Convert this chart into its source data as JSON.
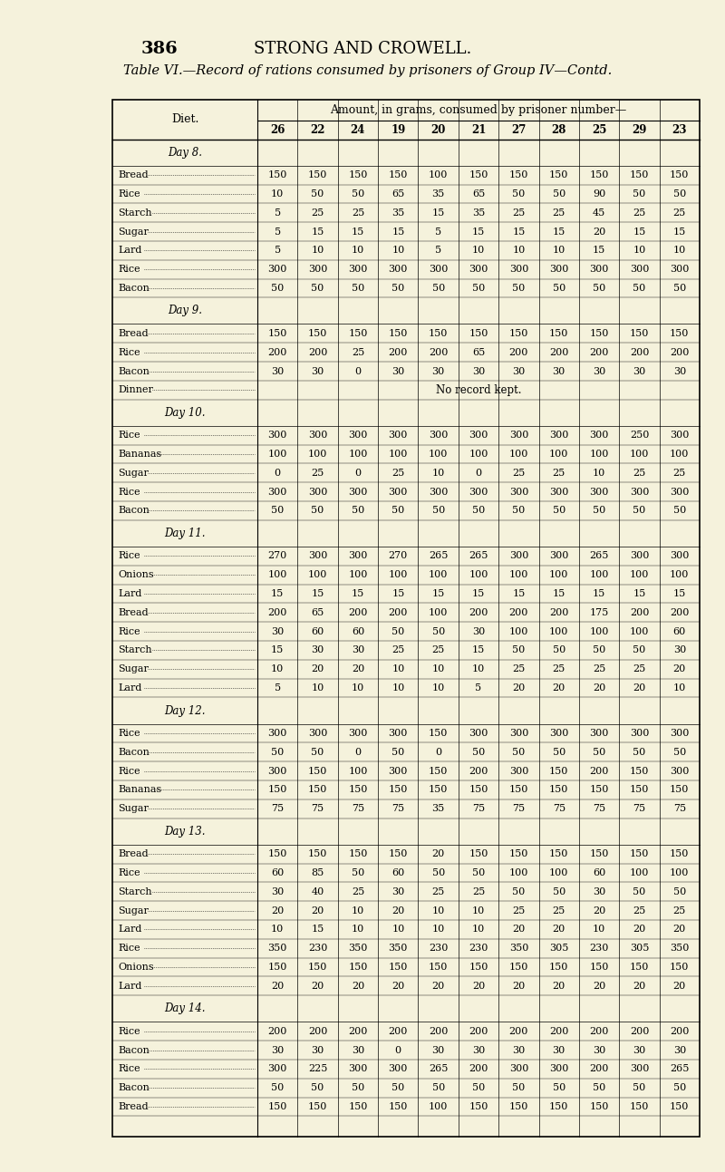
{
  "page_num": "386",
  "header": "STRONG AND CROWELL.",
  "title": "Table VI.—Record of rations consumed by prisoners of Group IV—Contd.",
  "col_header_top": "Amount, in grams, consumed by prisoner number—",
  "col_header_diet": "Diet.",
  "col_headers": [
    "26",
    "22",
    "24",
    "19",
    "20",
    "21",
    "27",
    "28",
    "25",
    "29",
    "23"
  ],
  "bg_color": "#f5f2dc",
  "rows": [
    {
      "label": "Day 8.",
      "type": "day",
      "values": []
    },
    {
      "label": "Bread",
      "type": "data",
      "values": [
        150,
        150,
        150,
        150,
        100,
        150,
        150,
        150,
        150,
        150,
        150
      ]
    },
    {
      "label": "Rice",
      "type": "data",
      "values": [
        10,
        50,
        50,
        65,
        35,
        65,
        50,
        50,
        90,
        50,
        50
      ]
    },
    {
      "label": "Starch",
      "type": "data",
      "values": [
        5,
        25,
        25,
        35,
        15,
        35,
        25,
        25,
        45,
        25,
        25
      ]
    },
    {
      "label": "Sugar",
      "type": "data",
      "values": [
        5,
        15,
        15,
        15,
        5,
        15,
        15,
        15,
        20,
        15,
        15
      ]
    },
    {
      "label": "Lard",
      "type": "data",
      "values": [
        5,
        10,
        10,
        10,
        5,
        10,
        10,
        10,
        15,
        10,
        10
      ]
    },
    {
      "label": "Rice",
      "type": "data",
      "values": [
        300,
        300,
        300,
        300,
        300,
        300,
        300,
        300,
        300,
        300,
        300
      ]
    },
    {
      "label": "Bacon",
      "type": "data",
      "values": [
        50,
        50,
        50,
        50,
        50,
        50,
        50,
        50,
        50,
        50,
        50
      ]
    },
    {
      "label": "Day 9.",
      "type": "day",
      "values": []
    },
    {
      "label": "Bread",
      "type": "data",
      "values": [
        150,
        150,
        150,
        150,
        150,
        150,
        150,
        150,
        150,
        150,
        150
      ]
    },
    {
      "label": "Rice",
      "type": "data",
      "values": [
        200,
        200,
        25,
        200,
        200,
        65,
        200,
        200,
        200,
        200,
        200
      ]
    },
    {
      "label": "Bacon",
      "type": "data",
      "values": [
        30,
        30,
        0,
        30,
        30,
        30,
        30,
        30,
        30,
        30,
        30
      ]
    },
    {
      "label": "Dinner",
      "type": "norecord",
      "values": [],
      "note": "No record kept."
    },
    {
      "label": "Day 10.",
      "type": "day",
      "values": []
    },
    {
      "label": "Rice",
      "type": "data",
      "values": [
        300,
        300,
        300,
        300,
        300,
        300,
        300,
        300,
        300,
        250,
        300
      ]
    },
    {
      "label": "Bananas",
      "type": "data",
      "values": [
        100,
        100,
        100,
        100,
        100,
        100,
        100,
        100,
        100,
        100,
        100
      ]
    },
    {
      "label": "Sugar",
      "type": "data",
      "values": [
        0,
        25,
        0,
        25,
        10,
        0,
        25,
        25,
        10,
        25,
        25
      ]
    },
    {
      "label": "Rice",
      "type": "data",
      "values": [
        300,
        300,
        300,
        300,
        300,
        300,
        300,
        300,
        300,
        300,
        300
      ]
    },
    {
      "label": "Bacon",
      "type": "data",
      "values": [
        50,
        50,
        50,
        50,
        50,
        50,
        50,
        50,
        50,
        50,
        50
      ]
    },
    {
      "label": "Day 11.",
      "type": "day",
      "values": []
    },
    {
      "label": "Rice",
      "type": "data",
      "values": [
        270,
        300,
        300,
        270,
        265,
        265,
        300,
        300,
        265,
        300,
        300
      ]
    },
    {
      "label": "Onions",
      "type": "data",
      "values": [
        100,
        100,
        100,
        100,
        100,
        100,
        100,
        100,
        100,
        100,
        100
      ]
    },
    {
      "label": "Lard",
      "type": "data",
      "values": [
        15,
        15,
        15,
        15,
        15,
        15,
        15,
        15,
        15,
        15,
        15
      ]
    },
    {
      "label": "Bread",
      "type": "data",
      "values": [
        200,
        65,
        200,
        200,
        100,
        200,
        200,
        200,
        175,
        200,
        200
      ]
    },
    {
      "label": "Rice",
      "type": "data",
      "values": [
        30,
        60,
        60,
        50,
        50,
        30,
        100,
        100,
        100,
        100,
        60
      ]
    },
    {
      "label": "Starch",
      "type": "data",
      "values": [
        15,
        30,
        30,
        25,
        25,
        15,
        50,
        50,
        50,
        50,
        30
      ]
    },
    {
      "label": "Sugar",
      "type": "data",
      "values": [
        10,
        20,
        20,
        10,
        10,
        10,
        25,
        25,
        25,
        25,
        20
      ]
    },
    {
      "label": "Lard",
      "type": "data",
      "values": [
        5,
        10,
        10,
        10,
        10,
        5,
        20,
        20,
        20,
        20,
        10
      ]
    },
    {
      "label": "Day 12.",
      "type": "day",
      "values": []
    },
    {
      "label": "Rice",
      "type": "data",
      "values": [
        300,
        300,
        300,
        300,
        150,
        300,
        300,
        300,
        300,
        300,
        300
      ]
    },
    {
      "label": "Bacon",
      "type": "data",
      "values": [
        50,
        50,
        0,
        50,
        0,
        50,
        50,
        50,
        50,
        50,
        50
      ]
    },
    {
      "label": "Rice",
      "type": "data",
      "values": [
        300,
        150,
        100,
        300,
        150,
        200,
        300,
        150,
        200,
        150,
        300
      ]
    },
    {
      "label": "Bananas",
      "type": "data",
      "values": [
        150,
        150,
        150,
        150,
        150,
        150,
        150,
        150,
        150,
        150,
        150
      ]
    },
    {
      "label": "Sugar",
      "type": "data",
      "values": [
        75,
        75,
        75,
        75,
        35,
        75,
        75,
        75,
        75,
        75,
        75
      ]
    },
    {
      "label": "Day 13.",
      "type": "day",
      "values": []
    },
    {
      "label": "Bread",
      "type": "data",
      "values": [
        150,
        150,
        150,
        150,
        20,
        150,
        150,
        150,
        150,
        150,
        150
      ]
    },
    {
      "label": "Rice",
      "type": "data",
      "values": [
        60,
        85,
        50,
        60,
        50,
        50,
        100,
        100,
        60,
        100,
        100
      ]
    },
    {
      "label": "Starch",
      "type": "data",
      "values": [
        30,
        40,
        25,
        30,
        25,
        25,
        50,
        50,
        30,
        50,
        50
      ]
    },
    {
      "label": "Sugar",
      "type": "data",
      "values": [
        20,
        20,
        10,
        20,
        10,
        10,
        25,
        25,
        20,
        25,
        25
      ]
    },
    {
      "label": "Lard",
      "type": "data",
      "values": [
        10,
        15,
        10,
        10,
        10,
        10,
        20,
        20,
        10,
        20,
        20
      ]
    },
    {
      "label": "Rice",
      "type": "data",
      "values": [
        350,
        230,
        350,
        350,
        230,
        230,
        350,
        305,
        230,
        305,
        350
      ]
    },
    {
      "label": "Onions",
      "type": "data",
      "values": [
        150,
        150,
        150,
        150,
        150,
        150,
        150,
        150,
        150,
        150,
        150
      ]
    },
    {
      "label": "Lard",
      "type": "data",
      "values": [
        20,
        20,
        20,
        20,
        20,
        20,
        20,
        20,
        20,
        20,
        20
      ]
    },
    {
      "label": "Day 14.",
      "type": "day",
      "values": []
    },
    {
      "label": "Rice",
      "type": "data",
      "values": [
        200,
        200,
        200,
        200,
        200,
        200,
        200,
        200,
        200,
        200,
        200
      ]
    },
    {
      "label": "Bacon",
      "type": "data",
      "values": [
        30,
        30,
        30,
        0,
        30,
        30,
        30,
        30,
        30,
        30,
        30
      ]
    },
    {
      "label": "Rice",
      "type": "data",
      "values": [
        300,
        225,
        300,
        300,
        265,
        200,
        300,
        300,
        200,
        300,
        265
      ]
    },
    {
      "label": "Bacon",
      "type": "data",
      "values": [
        50,
        50,
        50,
        50,
        50,
        50,
        50,
        50,
        50,
        50,
        50
      ]
    },
    {
      "label": "Bread",
      "type": "data",
      "values": [
        150,
        150,
        150,
        150,
        100,
        150,
        150,
        150,
        150,
        150,
        150
      ]
    }
  ]
}
